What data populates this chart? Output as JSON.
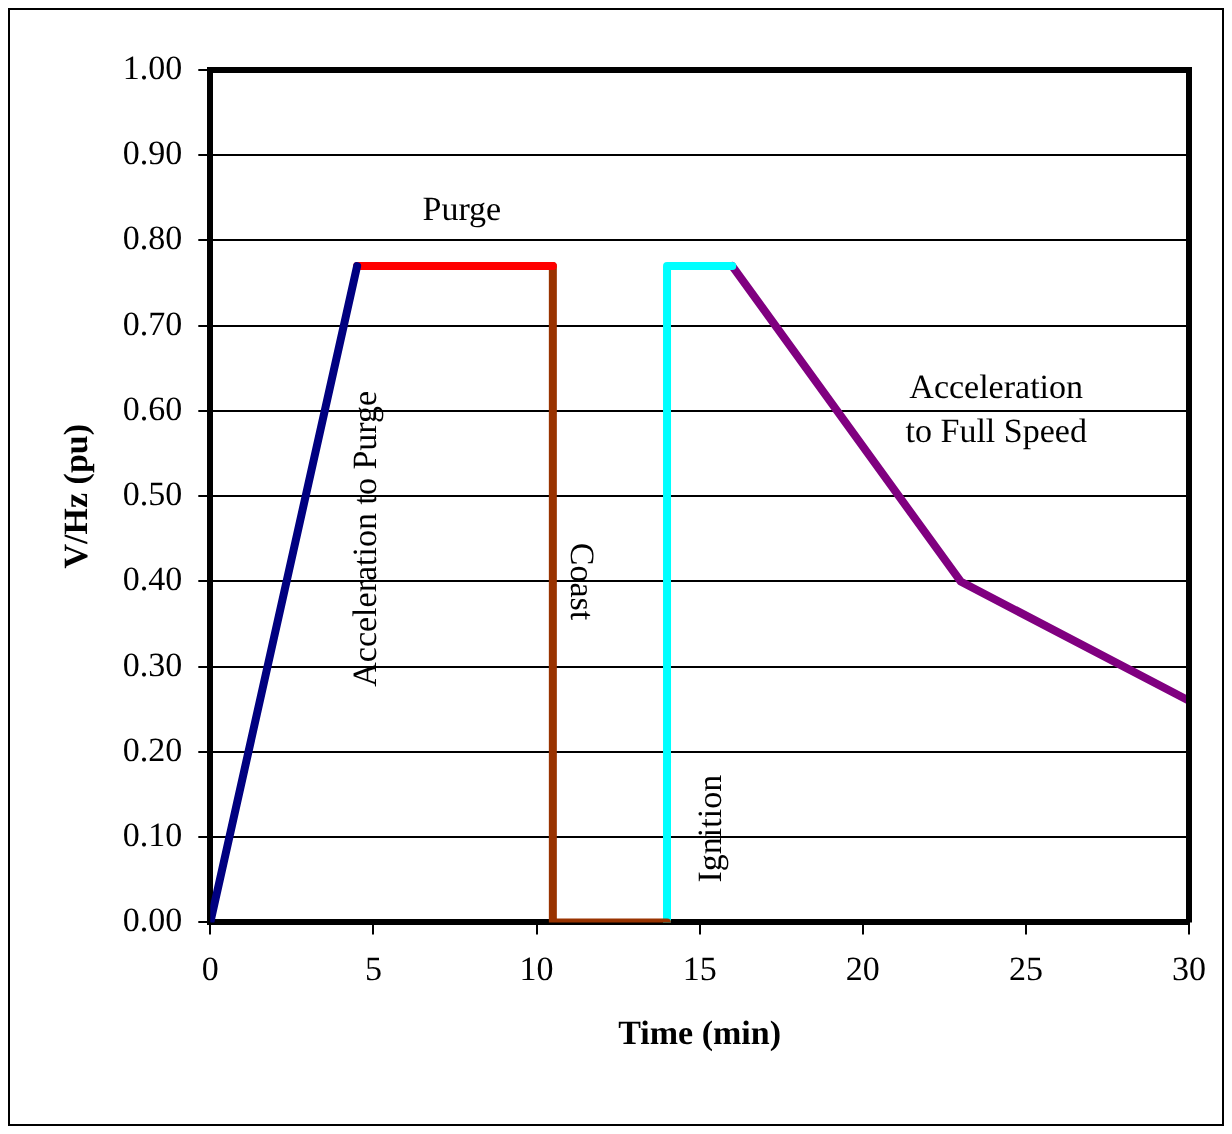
{
  "chart_data": {
    "type": "line",
    "xlabel": "Time (min)",
    "ylabel": "V/Hz (pu)",
    "xlim": [
      0,
      30
    ],
    "xticks": [
      0,
      5,
      10,
      15,
      20,
      25,
      30
    ],
    "ylim": [
      0,
      1
    ],
    "yticks": [
      {
        "value": 0,
        "label": "0.00"
      },
      {
        "value": 0.1,
        "label": "0.10"
      },
      {
        "value": 0.2,
        "label": "0.20"
      },
      {
        "value": 0.3,
        "label": "0.30"
      },
      {
        "value": 0.4,
        "label": "0.40"
      },
      {
        "value": 0.5,
        "label": "0.50"
      },
      {
        "value": 0.6,
        "label": "0.60"
      },
      {
        "value": 0.7,
        "label": "0.70"
      },
      {
        "value": 0.8,
        "label": "0.80"
      },
      {
        "value": 0.9,
        "label": "0.90"
      },
      {
        "value": 1,
        "label": "1.00"
      }
    ],
    "grid": "y",
    "legend": false,
    "marker": "none",
    "line_style": "solid",
    "series": [
      {
        "color": "#000080",
        "x": [
          0,
          4.5
        ],
        "values": [
          0,
          0.77
        ]
      },
      {
        "color": "#ff0000",
        "x": [
          4.5,
          10.5
        ],
        "values": [
          0.77,
          0.77
        ]
      },
      {
        "color": "#993300",
        "x": [
          10.5,
          10.5,
          14
        ],
        "values": [
          0.77,
          0,
          0
        ]
      },
      {
        "color": "#00ffff",
        "x": [
          14,
          14,
          16
        ],
        "values": [
          0,
          0.77,
          0.77
        ]
      },
      {
        "color": "#800080",
        "x": [
          16,
          23,
          30
        ],
        "values": [
          0.77,
          0.4,
          0.26
        ]
      }
    ],
    "annotations": [
      "Purge",
      "Acceleration to Purge",
      "Coast",
      "Ignition",
      "Acceleration to Full Speed"
    ]
  }
}
